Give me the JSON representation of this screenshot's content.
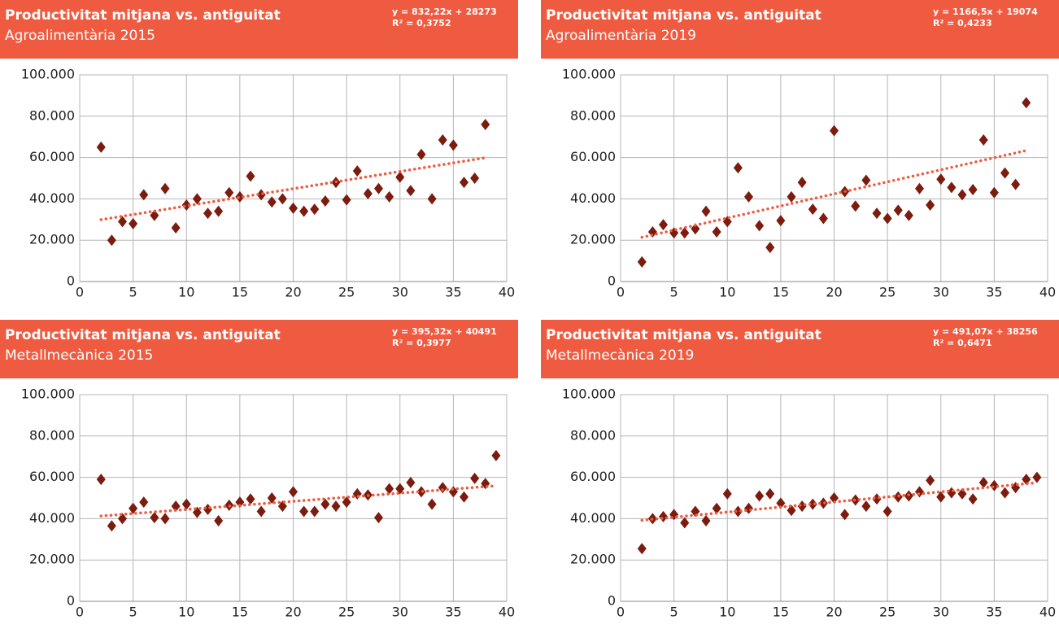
{
  "chart_data": [
    {
      "type": "scatter",
      "title": "Productivitat mitjana vs. antiguitat",
      "subtitle": "Agroalimentària 2015",
      "trendline": {
        "label": "y = 832,22x + 28273",
        "slope": 832.22,
        "intercept": 28273
      },
      "r_squared": "R² = 0,3752",
      "x": [
        2,
        3,
        4,
        5,
        6,
        7,
        8,
        9,
        10,
        11,
        12,
        13,
        14,
        15,
        16,
        17,
        18,
        19,
        20,
        21,
        22,
        23,
        24,
        25,
        26,
        27,
        28,
        29,
        30,
        31,
        32,
        33,
        34,
        35,
        36,
        37,
        38
      ],
      "values": [
        65000,
        20000,
        29000,
        28000,
        42000,
        32000,
        45000,
        26000,
        37000,
        40000,
        33000,
        34000,
        43000,
        41000,
        51000,
        42000,
        38500,
        40000,
        35500,
        34000,
        35000,
        39000,
        48000,
        39500,
        53500,
        42500,
        45000,
        41000,
        50500,
        44000,
        61500,
        40000,
        68500,
        66000,
        48000,
        50000,
        76000
      ],
      "color": "#7b1c0f",
      "trendline_color": "#ef5b40",
      "xlim": [
        0,
        40
      ],
      "xticks": [
        0,
        5,
        10,
        15,
        20,
        25,
        30,
        35,
        40
      ],
      "ylim": [
        0,
        100000
      ],
      "yticks": [
        0,
        {
          "value": 20000,
          "label": "20.000"
        },
        {
          "value": 40000,
          "label": "40.000"
        },
        {
          "value": 60000,
          "label": "60.000"
        },
        {
          "value": 80000,
          "label": "80.000"
        },
        {
          "value": 100000,
          "label": "100.000"
        }
      ],
      "grid": true
    },
    {
      "type": "scatter",
      "title": "Productivitat mitjana vs. antiguitat",
      "subtitle": "Agroalimentària 2019",
      "trendline": {
        "label": "y = 1166,5x + 19074",
        "slope": 1166.5,
        "intercept": 19074
      },
      "r_squared": "R² = 0,4233",
      "x": [
        2,
        3,
        4,
        5,
        6,
        7,
        8,
        9,
        10,
        11,
        12,
        13,
        14,
        15,
        16,
        17,
        18,
        19,
        20,
        21,
        22,
        23,
        24,
        25,
        26,
        27,
        28,
        29,
        30,
        31,
        32,
        33,
        34,
        35,
        36,
        37,
        38
      ],
      "values": [
        9500,
        24000,
        27500,
        23500,
        23500,
        25500,
        34000,
        24000,
        29000,
        55000,
        41000,
        27000,
        16500,
        29500,
        41000,
        48000,
        35000,
        30500,
        73000,
        43500,
        36500,
        49000,
        33000,
        30500,
        34500,
        32000,
        45000,
        37000,
        49500,
        45500,
        42000,
        44500,
        68500,
        43000,
        52500,
        47000,
        86500
      ],
      "color": "#7b1c0f",
      "trendline_color": "#ef5b40",
      "xlim": [
        0,
        40
      ],
      "xticks": [
        0,
        5,
        10,
        15,
        20,
        25,
        30,
        35,
        40
      ],
      "ylim": [
        0,
        100000
      ],
      "yticks": [
        0,
        {
          "value": 20000,
          "label": "20.000"
        },
        {
          "value": 40000,
          "label": "40.000"
        },
        {
          "value": 60000,
          "label": "60.000"
        },
        {
          "value": 80000,
          "label": "80.000"
        },
        {
          "value": 100000,
          "label": "100.000"
        }
      ],
      "grid": true
    },
    {
      "type": "scatter",
      "title": "Productivitat mitjana vs. antiguitat",
      "subtitle": "Metallmecànica 2015",
      "trendline": {
        "label": "y = 395,32x + 40491",
        "slope": 395.32,
        "intercept": 40491
      },
      "r_squared": "R² = 0,3977",
      "x": [
        2,
        3,
        4,
        5,
        6,
        7,
        8,
        9,
        10,
        11,
        12,
        13,
        14,
        15,
        16,
        17,
        18,
        19,
        20,
        21,
        22,
        23,
        24,
        25,
        26,
        27,
        28,
        29,
        30,
        31,
        32,
        33,
        34,
        35,
        36,
        37,
        38,
        39
      ],
      "values": [
        59000,
        36500,
        40000,
        45000,
        48000,
        40500,
        40000,
        46000,
        47000,
        43000,
        44500,
        39000,
        46500,
        48000,
        49500,
        43500,
        50000,
        46000,
        53000,
        43500,
        43500,
        47000,
        46000,
        48000,
        52000,
        51500,
        40500,
        54500,
        54500,
        57500,
        53000,
        47000,
        55000,
        53000,
        50500,
        59500,
        57000,
        70500
      ],
      "color": "#7b1c0f",
      "trendline_color": "#ef5b40",
      "xlim": [
        0,
        40
      ],
      "xticks": [
        0,
        5,
        10,
        15,
        20,
        25,
        30,
        35,
        40
      ],
      "ylim": [
        0,
        100000
      ],
      "yticks": [
        0,
        {
          "value": 20000,
          "label": "20.000"
        },
        {
          "value": 40000,
          "label": "40.000"
        },
        {
          "value": 60000,
          "label": "60.000"
        },
        {
          "value": 80000,
          "label": "80.000"
        },
        {
          "value": 100000,
          "label": "100.000"
        }
      ],
      "grid": true
    },
    {
      "type": "scatter",
      "title": "Productivitat mitjana vs. antiguitat",
      "subtitle": "Metallmecànica 2019",
      "trendline": {
        "label": "y = 491,07x + 38256",
        "slope": 491.07,
        "intercept": 38256
      },
      "r_squared": "R² = 0,6471",
      "x": [
        2,
        3,
        4,
        5,
        6,
        7,
        8,
        9,
        10,
        11,
        12,
        13,
        14,
        15,
        16,
        17,
        18,
        19,
        20,
        21,
        22,
        23,
        24,
        25,
        26,
        27,
        28,
        29,
        30,
        31,
        32,
        33,
        34,
        35,
        36,
        37,
        38,
        39
      ],
      "values": [
        25500,
        40000,
        41000,
        42000,
        38000,
        43500,
        39000,
        45000,
        52000,
        43500,
        45000,
        51000,
        52000,
        47500,
        44000,
        46000,
        47000,
        47500,
        50000,
        42000,
        49000,
        46000,
        49500,
        43500,
        50500,
        51000,
        53000,
        58500,
        50500,
        52500,
        52000,
        49500,
        57500,
        56000,
        52500,
        55000,
        59000,
        60000
      ],
      "color": "#7b1c0f",
      "trendline_color": "#ef5b40",
      "xlim": [
        0,
        40
      ],
      "xticks": [
        0,
        5,
        10,
        15,
        20,
        25,
        30,
        35,
        40
      ],
      "ylim": [
        0,
        100000
      ],
      "yticks": [
        0,
        {
          "value": 20000,
          "label": "20.000"
        },
        {
          "value": 40000,
          "label": "40.000"
        },
        {
          "value": 60000,
          "label": "60.000"
        },
        {
          "value": 80000,
          "label": "80.000"
        },
        {
          "value": 100000,
          "label": "100.000"
        }
      ],
      "grid": true
    }
  ]
}
